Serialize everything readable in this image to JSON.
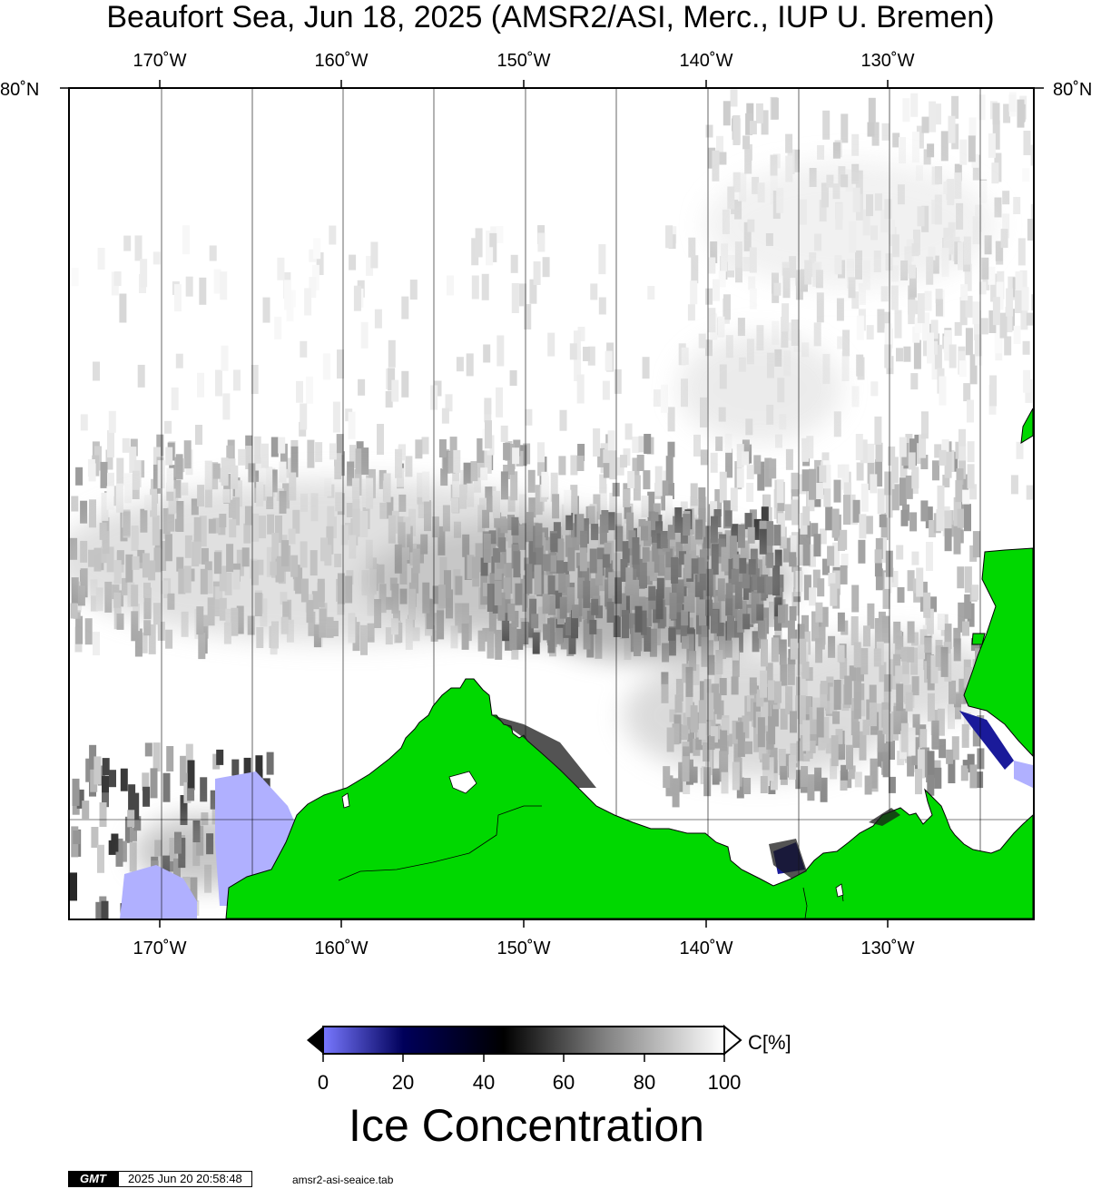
{
  "title": "Beaufort Sea, Jun 18, 2025 (AMSR2/ASI, Merc., IUP U. Bremen)",
  "lon_labels_top": [
    "170˚W",
    "160˚W",
    "150˚W",
    "140˚W",
    "130˚W"
  ],
  "lon_labels_bottom": [
    "170˚W",
    "160˚W",
    "150˚W",
    "140˚W",
    "130˚W"
  ],
  "lat_label_left": "80˚N",
  "lat_label_right": "80˚N",
  "colors": {
    "land": "#00d800",
    "land_edge": "#000000",
    "open_water": "#ffffff",
    "low_conc": "#b0b0ff",
    "mid_conc": "#1a1a9a"
  },
  "colorbar": {
    "ticks": [
      "0",
      "20",
      "40",
      "60",
      "80",
      "100"
    ],
    "unit": "C[%]",
    "title": "Ice Concentration",
    "stops": [
      "#7878ff",
      "#00005a",
      "#000000",
      "#808080",
      "#ffffff"
    ]
  },
  "footer": {
    "logo": "GMT",
    "timestamp": "2025 Jun 20 20:58:48",
    "file": "amsr2-asi-seaice.tab"
  }
}
